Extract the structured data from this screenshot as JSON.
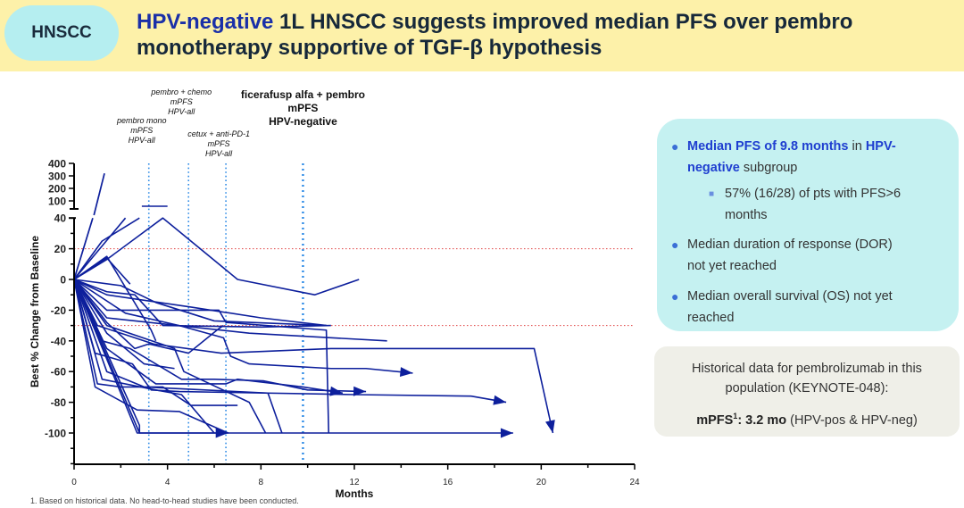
{
  "header": {
    "badge": "HNSCC",
    "title_highlight": "HPV-negative",
    "title_rest_line1": " 1L HNSCC suggests improved median PFS over pembro",
    "title_line2": "monotherapy supportive of TGF-β hypothesis"
  },
  "colors": {
    "header_bg": "#fdf1a9",
    "badge_bg": "#b5eef0",
    "title_highlight": "#1a2fa8",
    "line": "#0d1f9c",
    "ref_line_blue": "#2e8be6",
    "threshold_red": "#e04040",
    "info_bg": "#c5f1f1",
    "hist_bg": "#efefe8"
  },
  "chart_data": {
    "type": "line",
    "title": "",
    "xlabel": "Months",
    "ylabel": "Best % Change from Baseline",
    "xlim": [
      0,
      24
    ],
    "ylim": [
      -120,
      40
    ],
    "ylim_upper_break": [
      100,
      400
    ],
    "x_ticks": [
      0,
      4,
      8,
      12,
      16,
      20,
      24
    ],
    "x_minor_ticks": [
      2,
      6,
      10,
      14,
      18,
      22
    ],
    "y_ticks": [
      40,
      20,
      0,
      -20,
      -40,
      -60,
      -80,
      -100
    ],
    "y_ticks_upper": [
      400,
      300,
      200,
      100
    ],
    "grid": false,
    "threshold_lines": [
      {
        "y": 20,
        "label": "progression threshold"
      },
      {
        "y": -30,
        "label": "response threshold"
      }
    ],
    "reference_lines": [
      {
        "x": 3.2,
        "label_lines": [
          "pembro mono",
          "mPFS",
          "HPV-all"
        ],
        "style": "italic"
      },
      {
        "x": 4.9,
        "label_lines": [
          "pembro + chemo",
          "mPFS",
          "HPV-all"
        ],
        "style": "italic"
      },
      {
        "x": 6.5,
        "label_lines": [
          "cetux + anti-PD-1",
          "mPFS",
          "HPV-all"
        ],
        "style": "italic"
      },
      {
        "x": 9.8,
        "label_lines": [
          "ficerafusp alfa + pembro",
          "mPFS",
          "HPV-negative"
        ],
        "style": "bold"
      }
    ],
    "series": [
      {
        "name": "pt1",
        "points": [
          [
            0,
            0
          ],
          [
            1.3,
            320
          ]
        ],
        "upper": true
      },
      {
        "name": "pt2",
        "points": [
          [
            2.9,
            60
          ],
          [
            4,
            60
          ]
        ],
        "upper": true
      },
      {
        "name": "pt3",
        "points": [
          [
            0,
            0
          ],
          [
            1.2,
            25
          ],
          [
            2.8,
            40
          ]
        ]
      },
      {
        "name": "pt4",
        "points": [
          [
            0,
            0
          ],
          [
            2.2,
            40
          ]
        ]
      },
      {
        "name": "pt5",
        "points": [
          [
            0,
            0
          ],
          [
            1.4,
            13
          ],
          [
            3.8,
            40
          ],
          [
            7.0,
            0
          ],
          [
            10.3,
            -10
          ],
          [
            12.2,
            0
          ]
        ]
      },
      {
        "name": "pt6",
        "points": [
          [
            0,
            0
          ],
          [
            1.4,
            14
          ],
          [
            2.4,
            -3
          ]
        ]
      },
      {
        "name": "pt7",
        "points": [
          [
            0,
            0
          ],
          [
            1.4,
            15
          ],
          [
            3.3,
            -33
          ],
          [
            3.5,
            -40
          ]
        ]
      },
      {
        "name": "pt8",
        "points": [
          [
            0,
            0
          ],
          [
            2.0,
            -4
          ],
          [
            3.5,
            -15
          ],
          [
            6.0,
            -27
          ],
          [
            10.8,
            -30
          ]
        ]
      },
      {
        "name": "pt9",
        "points": [
          [
            0,
            0
          ],
          [
            1.4,
            -10
          ],
          [
            5.0,
            -18
          ],
          [
            8.0,
            -25
          ],
          [
            10.8,
            -30
          ]
        ]
      },
      {
        "name": "pt10",
        "points": [
          [
            0,
            0
          ],
          [
            1.4,
            -8
          ],
          [
            2.6,
            -10
          ],
          [
            3.8,
            -30
          ],
          [
            8.0,
            -31
          ],
          [
            11.0,
            -30
          ]
        ]
      },
      {
        "name": "pt11",
        "points": [
          [
            0,
            0
          ],
          [
            1.4,
            -20
          ],
          [
            6.2,
            -20
          ],
          [
            6.5,
            -28
          ],
          [
            10.8,
            -33
          ],
          [
            10.9,
            -100
          ]
        ]
      },
      {
        "name": "pt12",
        "points": [
          [
            0,
            0
          ],
          [
            1.4,
            -25
          ],
          [
            7.5,
            -35
          ],
          [
            13.4,
            -40
          ]
        ]
      },
      {
        "name": "pt13",
        "points": [
          [
            0,
            0
          ],
          [
            1.0,
            -30
          ],
          [
            3.4,
            -42
          ],
          [
            6.3,
            -48
          ],
          [
            11.0,
            -45
          ],
          [
            19.7,
            -45
          ],
          [
            20.5,
            -100
          ]
        ],
        "arrow": true
      },
      {
        "name": "pt14",
        "points": [
          [
            0,
            0
          ],
          [
            2.2,
            -22
          ],
          [
            4.5,
            -30
          ],
          [
            6.4,
            -38
          ],
          [
            6.7,
            -50
          ],
          [
            7.5,
            -55
          ],
          [
            11.0,
            -58
          ],
          [
            12.5,
            -58
          ],
          [
            14.5,
            -61
          ]
        ],
        "arrow": true
      },
      {
        "name": "pt15",
        "points": [
          [
            0,
            0
          ],
          [
            1.4,
            -28
          ],
          [
            2.6,
            -45
          ],
          [
            3.2,
            -42
          ],
          [
            4.9,
            -48
          ],
          [
            6.2,
            -32
          ],
          [
            6.4,
            -30
          ]
        ]
      },
      {
        "name": "pt16",
        "points": [
          [
            0,
            0
          ],
          [
            1.4,
            -35
          ],
          [
            3.0,
            -55
          ],
          [
            4.3,
            -58
          ]
        ]
      },
      {
        "name": "pt17",
        "points": [
          [
            0,
            0
          ],
          [
            1.2,
            -40
          ],
          [
            2.4,
            -45
          ],
          [
            4.6,
            -65
          ],
          [
            6.0,
            -65
          ],
          [
            8.1,
            -66
          ],
          [
            10.0,
            -72
          ],
          [
            12.5,
            -73
          ]
        ],
        "arrow": true
      },
      {
        "name": "pt18",
        "points": [
          [
            0,
            0
          ],
          [
            1.4,
            -45
          ],
          [
            3.5,
            -68
          ],
          [
            6.5,
            -68
          ],
          [
            7.0,
            -65
          ],
          [
            9.8,
            -70
          ],
          [
            11.5,
            -74
          ]
        ],
        "arrow": true
      },
      {
        "name": "pt19",
        "points": [
          [
            0,
            0
          ],
          [
            0.9,
            -48
          ],
          [
            2.5,
            -55
          ],
          [
            3.3,
            -72
          ],
          [
            4.5,
            -73
          ],
          [
            12.0,
            -75
          ],
          [
            17.0,
            -76
          ],
          [
            18.5,
            -80
          ]
        ],
        "arrow": true
      },
      {
        "name": "pt20",
        "points": [
          [
            0,
            0
          ],
          [
            1.2,
            -65
          ],
          [
            3.5,
            -72
          ],
          [
            4.6,
            -75
          ],
          [
            6.0,
            -100
          ]
        ]
      },
      {
        "name": "pt21",
        "points": [
          [
            0,
            0
          ],
          [
            1.0,
            -68
          ],
          [
            2.0,
            -70
          ],
          [
            3.8,
            -70
          ],
          [
            5.0,
            -82
          ],
          [
            7.0,
            -82
          ]
        ]
      },
      {
        "name": "pt22",
        "points": [
          [
            0,
            0
          ],
          [
            0.9,
            -70
          ],
          [
            2.7,
            -85
          ],
          [
            4.5,
            -86
          ],
          [
            6.6,
            -100
          ]
        ]
      },
      {
        "name": "pt23",
        "points": [
          [
            0,
            0
          ],
          [
            1.4,
            -60
          ],
          [
            3.0,
            -70
          ],
          [
            8.3,
            -74
          ],
          [
            8.9,
            -100
          ]
        ]
      },
      {
        "name": "pt24",
        "points": [
          [
            0,
            0
          ],
          [
            2.8,
            -100
          ],
          [
            6.6,
            -100
          ]
        ],
        "arrow": true
      },
      {
        "name": "pt25",
        "points": [
          [
            0,
            0
          ],
          [
            2.7,
            -100
          ],
          [
            18.8,
            -100
          ]
        ],
        "arrow": true
      },
      {
        "name": "pt26",
        "points": [
          [
            0,
            0
          ],
          [
            2.8,
            -95
          ],
          [
            2.8,
            -100
          ]
        ]
      },
      {
        "name": "pt27",
        "points": [
          [
            0,
            0
          ],
          [
            1.4,
            -30
          ],
          [
            4.3,
            -45
          ],
          [
            4.7,
            -60
          ],
          [
            7.5,
            -80
          ],
          [
            8.2,
            -100
          ]
        ]
      }
    ]
  },
  "info_box": {
    "bullet1_highlight": "Median PFS of 9.8 months",
    "bullet1_mid": " in ",
    "bullet1_highlight2": "HPV-",
    "bullet1_line2_highlight": "negative",
    "bullet1_line2_rest": " subgroup",
    "sub_bullet_line1": "57% (16/28) of pts with PFS>6",
    "sub_bullet_line2": "months",
    "bullet2_line1": "Median duration of response (DOR)",
    "bullet2_line2": "not yet reached",
    "bullet3_line1": "Median overall survival (OS) not yet",
    "bullet3_line2": "reached"
  },
  "historical_box": {
    "line1": "Historical data for pembrolizumab in this",
    "line2": "population (KEYNOTE-048):",
    "mpfs_label": "mPFS",
    "mpfs_sup": "1",
    "mpfs_value": ": 3.2 mo",
    "mpfs_note": " (HPV-pos & HPV-neg)"
  },
  "footnote": "1. Based on historical data. No head-to-head studies have been conducted."
}
